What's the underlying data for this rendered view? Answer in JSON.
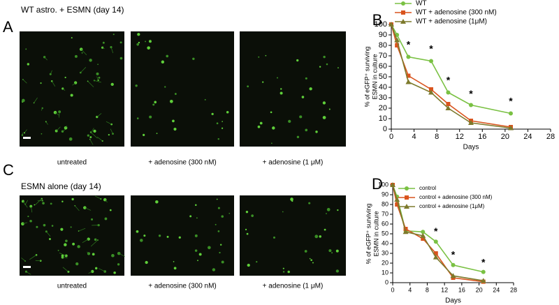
{
  "panels": [
    {
      "label": "A",
      "title": "WT astro. + ESMN (day 14)",
      "captions": [
        "untreated",
        "+ adenosine (300 nM)",
        "+ adenosine (1 μM)"
      ]
    },
    {
      "label": "C",
      "title": "ESMN alone (day 14)",
      "captions": [
        "untreated",
        "+ adenosine (300 nM)",
        "+ adenosine (1 μM)"
      ]
    }
  ],
  "chart_data": [
    {
      "type": "line",
      "label": "B",
      "xlabel": "Days",
      "ylabel": [
        "% of eGFP⁺ surviving",
        "ESMN in culture"
      ],
      "x": [
        0,
        1,
        3,
        7,
        10,
        14,
        21
      ],
      "series": [
        {
          "name": "WT",
          "color": "#7ac143",
          "marker": "circle",
          "values": [
            100,
            90,
            69,
            65,
            35,
            23,
            15
          ]
        },
        {
          "name": "WT + adenosine (300 nM)",
          "color": "#d9541e",
          "marker": "square",
          "values": [
            100,
            80,
            51,
            38,
            24,
            8,
            2
          ]
        },
        {
          "name": "WT + adenosine (1μM)",
          "color": "#7d7a2c",
          "marker": "triangle",
          "values": [
            100,
            85,
            45,
            35,
            20,
            6,
            1
          ]
        }
      ],
      "annotations": [
        {
          "x": 3,
          "y": 80,
          "text": "*"
        },
        {
          "x": 7,
          "y": 76,
          "text": "*"
        },
        {
          "x": 10,
          "y": 46,
          "text": "*"
        },
        {
          "x": 14,
          "y": 33,
          "text": "*"
        },
        {
          "x": 21,
          "y": 26,
          "text": "*"
        }
      ],
      "xlim": [
        0,
        28
      ],
      "xticks": [
        0,
        4,
        8,
        12,
        16,
        20,
        24,
        28
      ],
      "ylim": [
        0,
        100
      ],
      "yticks": [
        0,
        10,
        20,
        30,
        40,
        50,
        60,
        70,
        80,
        90,
        100
      ]
    },
    {
      "type": "line",
      "label": "D",
      "xlabel": "Days",
      "ylabel": [
        "% of eGFP⁺ surviving",
        "ESMN in culture"
      ],
      "x": [
        0,
        1,
        3,
        7,
        10,
        14,
        21
      ],
      "series": [
        {
          "name": "control",
          "color": "#7ac143",
          "marker": "circle",
          "values": [
            100,
            88,
            53,
            52,
            42,
            18,
            11
          ]
        },
        {
          "name": "control + adenosine (300 nM)",
          "color": "#d9541e",
          "marker": "square",
          "values": [
            100,
            80,
            55,
            45,
            30,
            5,
            1
          ]
        },
        {
          "name": "control + adenosine (1μM)",
          "color": "#7d7a2c",
          "marker": "triangle",
          "values": [
            100,
            85,
            52,
            48,
            26,
            7,
            2
          ]
        }
      ],
      "annotations": [
        {
          "x": 10,
          "y": 52,
          "text": "*"
        },
        {
          "x": 14,
          "y": 28,
          "text": "*"
        },
        {
          "x": 21,
          "y": 20,
          "text": "*"
        }
      ],
      "xlim": [
        0,
        28
      ],
      "xticks": [
        0,
        4,
        8,
        12,
        16,
        20,
        24,
        28
      ],
      "ylim": [
        0,
        100
      ],
      "yticks": [
        0,
        10,
        20,
        30,
        40,
        50,
        60,
        70,
        80,
        90,
        100
      ]
    }
  ]
}
